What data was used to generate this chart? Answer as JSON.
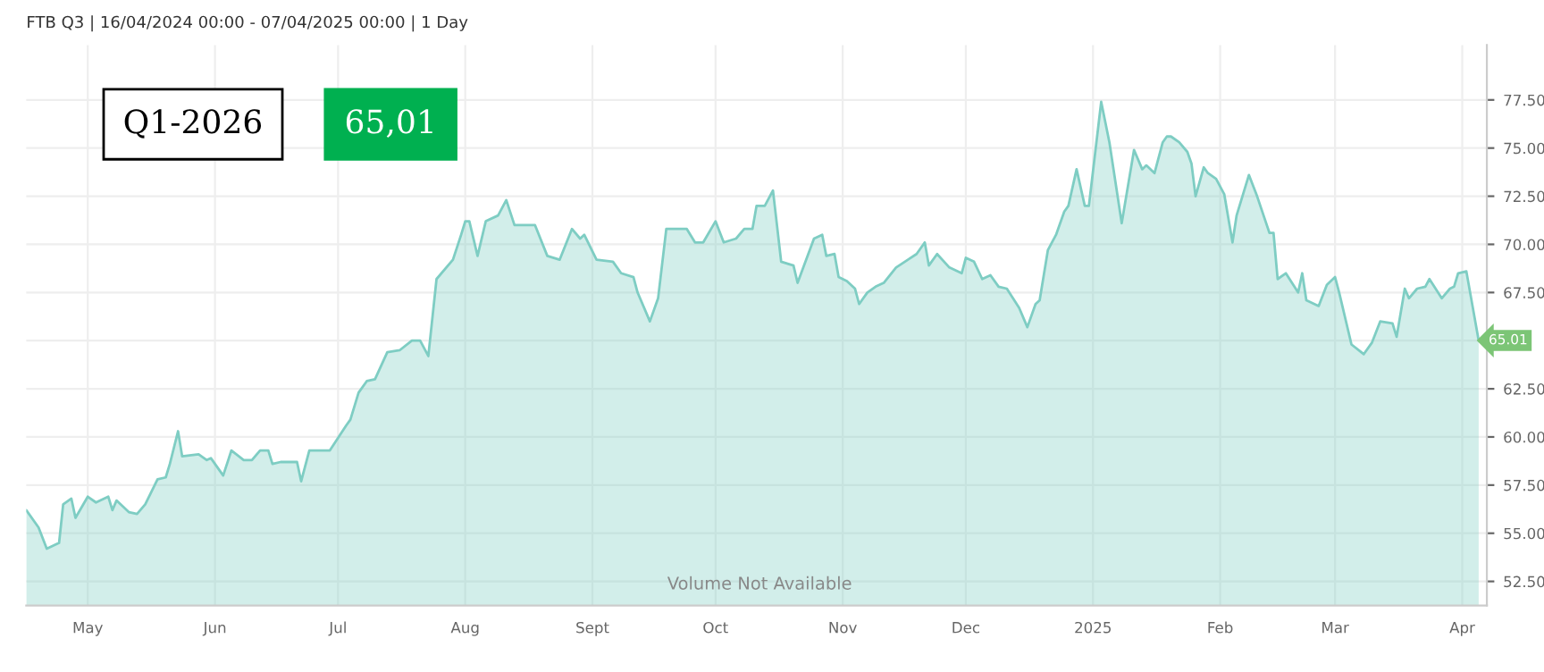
{
  "chart_data": {
    "type": "area",
    "title": "FTB Q3 | 16/04/2024 00:00 - 07/04/2025 00:00 | 1 Day",
    "annotations": [
      "Q1-2026",
      "65,01",
      "Volume Not Available",
      {
        "text": "65.01",
        "x": "2025-04-05",
        "y": 65.01
      }
    ],
    "series": [
      {
        "color": "#7ecdc3",
        "x": [
          "2024-04-16",
          "2024-04-19",
          "2024-04-21",
          "2024-04-24",
          "2024-04-25",
          "2024-04-27",
          "2024-04-28",
          "2024-05-01",
          "2024-05-03",
          "2024-05-06",
          "2024-05-07",
          "2024-05-08",
          "2024-05-11",
          "2024-05-13",
          "2024-05-15",
          "2024-05-18",
          "2024-05-20",
          "2024-05-21",
          "2024-05-23",
          "2024-05-24",
          "2024-05-28",
          "2024-05-30",
          "2024-05-31",
          "2024-06-03",
          "2024-06-05",
          "2024-06-08",
          "2024-06-10",
          "2024-06-12",
          "2024-06-14",
          "2024-06-15",
          "2024-06-17",
          "2024-06-21",
          "2024-06-22",
          "2024-06-24",
          "2024-06-29",
          "2024-07-03",
          "2024-07-04",
          "2024-07-06",
          "2024-07-08",
          "2024-07-10",
          "2024-07-13",
          "2024-07-16",
          "2024-07-19",
          "2024-07-21",
          "2024-07-23",
          "2024-07-25",
          "2024-07-29",
          "2024-07-31",
          "2024-08-01",
          "2024-08-02",
          "2024-08-04",
          "2024-08-06",
          "2024-08-09",
          "2024-08-11",
          "2024-08-13",
          "2024-08-18",
          "2024-08-21",
          "2024-08-24",
          "2024-08-27",
          "2024-08-29",
          "2024-08-30",
          "2024-09-02",
          "2024-09-06",
          "2024-09-08",
          "2024-09-11",
          "2024-09-12",
          "2024-09-15",
          "2024-09-17",
          "2024-09-19",
          "2024-09-24",
          "2024-09-26",
          "2024-09-28",
          "2024-10-01",
          "2024-10-03",
          "2024-10-06",
          "2024-10-08",
          "2024-10-10",
          "2024-10-11",
          "2024-10-13",
          "2024-10-15",
          "2024-10-17",
          "2024-10-20",
          "2024-10-21",
          "2024-10-25",
          "2024-10-27",
          "2024-10-28",
          "2024-10-30",
          "2024-10-31",
          "2024-11-02",
          "2024-11-04",
          "2024-11-05",
          "2024-11-07",
          "2024-11-09",
          "2024-11-11",
          "2024-11-14",
          "2024-11-19",
          "2024-11-21",
          "2024-11-22",
          "2024-11-24",
          "2024-11-27",
          "2024-11-30",
          "2024-12-01",
          "2024-12-03",
          "2024-12-05",
          "2024-12-07",
          "2024-12-09",
          "2024-12-11",
          "2024-12-14",
          "2024-12-16",
          "2024-12-18",
          "2024-12-19",
          "2024-12-21",
          "2024-12-23",
          "2024-12-25",
          "2024-12-26",
          "2024-12-28",
          "2024-12-30",
          "2024-12-31",
          "2025-01-03",
          "2025-01-05",
          "2025-01-08",
          "2025-01-11",
          "2025-01-13",
          "2025-01-14",
          "2025-01-16",
          "2025-01-18",
          "2025-01-19",
          "2025-01-20",
          "2025-01-22",
          "2025-01-24",
          "2025-01-25",
          "2025-01-26",
          "2025-01-28",
          "2025-01-29",
          "2025-01-31",
          "2025-02-02",
          "2025-02-04",
          "2025-02-05",
          "2025-02-08",
          "2025-02-10",
          "2025-02-13",
          "2025-02-14",
          "2025-02-15",
          "2025-02-17",
          "2025-02-20",
          "2025-02-21",
          "2025-02-22",
          "2025-02-25",
          "2025-02-27",
          "2025-03-01",
          "2025-03-02",
          "2025-03-05",
          "2025-03-08",
          "2025-03-10",
          "2025-03-12",
          "2025-03-15",
          "2025-03-16",
          "2025-03-18",
          "2025-03-19",
          "2025-03-21",
          "2025-03-23",
          "2025-03-24",
          "2025-03-27",
          "2025-03-29",
          "2025-03-30",
          "2025-03-31",
          "2025-04-02",
          "2025-04-05"
        ],
        "values": [
          56.2,
          55.3,
          54.2,
          54.5,
          56.5,
          56.8,
          55.8,
          56.9,
          56.6,
          56.9,
          56.2,
          56.7,
          56.1,
          56.0,
          56.5,
          57.8,
          57.9,
          58.6,
          60.3,
          59.0,
          59.1,
          58.8,
          58.9,
          58.0,
          59.3,
          58.8,
          58.8,
          59.3,
          59.3,
          58.6,
          58.7,
          58.7,
          57.7,
          59.3,
          59.3,
          60.6,
          60.9,
          62.3,
          62.9,
          63.0,
          64.4,
          64.5,
          65.0,
          65.0,
          64.2,
          68.2,
          69.2,
          70.5,
          71.2,
          71.2,
          69.4,
          71.2,
          71.5,
          72.3,
          71.0,
          71.0,
          69.4,
          69.2,
          70.8,
          70.3,
          70.5,
          69.2,
          69.1,
          68.5,
          68.3,
          67.5,
          66.0,
          67.2,
          70.8,
          70.8,
          70.1,
          70.1,
          71.2,
          70.1,
          70.3,
          70.8,
          70.8,
          72.0,
          72.0,
          72.8,
          69.1,
          68.9,
          68.0,
          70.3,
          70.5,
          69.4,
          69.5,
          68.3,
          68.1,
          67.7,
          66.9,
          67.5,
          67.8,
          68.0,
          68.8,
          69.5,
          70.1,
          68.9,
          69.5,
          68.8,
          68.5,
          69.3,
          69.1,
          68.2,
          68.4,
          67.8,
          67.7,
          66.7,
          65.7,
          66.9,
          67.1,
          69.7,
          70.5,
          71.7,
          72.0,
          73.9,
          72.0,
          72.0,
          77.4,
          75.3,
          71.1,
          74.9,
          73.9,
          74.1,
          73.7,
          75.3,
          75.6,
          75.6,
          75.3,
          74.8,
          74.2,
          72.5,
          74.0,
          73.7,
          73.4,
          72.6,
          70.1,
          71.5,
          73.6,
          72.5,
          70.6,
          70.6,
          68.2,
          68.5,
          67.5,
          68.5,
          67.1,
          66.8,
          67.9,
          68.3,
          67.5,
          64.8,
          64.3,
          64.9,
          66.0,
          65.9,
          65.2,
          67.7,
          67.2,
          67.7,
          67.8,
          68.2,
          67.2,
          67.7,
          67.8,
          68.5,
          68.6,
          65.01
        ]
      }
    ],
    "xlim": [
      "2024-04-16",
      "2025-04-07"
    ],
    "xticks": [
      {
        "value": "2024-05-01",
        "label": "May"
      },
      {
        "value": "2024-06-01",
        "label": "Jun"
      },
      {
        "value": "2024-07-01",
        "label": "Jul"
      },
      {
        "value": "2024-08-01",
        "label": "Aug"
      },
      {
        "value": "2024-09-01",
        "label": "Sept"
      },
      {
        "value": "2024-10-01",
        "label": "Oct"
      },
      {
        "value": "2024-11-01",
        "label": "Nov"
      },
      {
        "value": "2024-12-01",
        "label": "Dec"
      },
      {
        "value": "2025-01-01",
        "label": "2025"
      },
      {
        "value": "2025-02-01",
        "label": "Feb"
      },
      {
        "value": "2025-03-01",
        "label": "Mar"
      },
      {
        "value": "2025-04-01",
        "label": "Apr"
      }
    ],
    "ylim": [
      51.25,
      80.35
    ],
    "yticks": [
      {
        "value": 52.5,
        "label": "52.50"
      },
      {
        "value": 55,
        "label": "55.00"
      },
      {
        "value": 57.5,
        "label": "57.50"
      },
      {
        "value": 60,
        "label": "60.00"
      },
      {
        "value": 62.5,
        "label": "62.50"
      },
      {
        "value": 65,
        "label": null
      },
      {
        "value": 67.5,
        "label": "67.50"
      },
      {
        "value": 70,
        "label": "70.00"
      },
      {
        "value": 72.5,
        "label": "72.50"
      },
      {
        "value": 75,
        "label": "75.00"
      },
      {
        "value": 77.5,
        "label": "77.50"
      }
    ],
    "grid": true,
    "legend": false
  }
}
